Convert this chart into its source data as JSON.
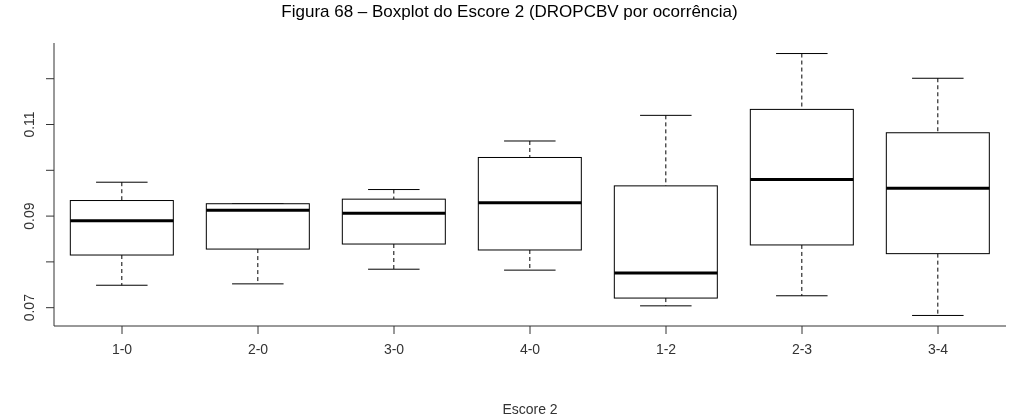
{
  "chart_data": {
    "type": "box",
    "title": "Figura 68 – Boxplot do Escore 2 (DROPCBV por ocorrência)",
    "xlabel": "Escore 2",
    "categories": [
      "1-0",
      "2-0",
      "3-0",
      "4-0",
      "1-2",
      "2-3",
      "3-4"
    ],
    "boxes": [
      {
        "low": 0.0749,
        "q1": 0.0815,
        "median": 0.089,
        "q3": 0.0934,
        "high": 0.0974
      },
      {
        "low": 0.0752,
        "q1": 0.0828,
        "median": 0.0913,
        "q3": 0.0927,
        "high": 0.0927
      },
      {
        "low": 0.0784,
        "q1": 0.0839,
        "median": 0.0906,
        "q3": 0.0937,
        "high": 0.0958
      },
      {
        "low": 0.0782,
        "q1": 0.0826,
        "median": 0.0929,
        "q3": 0.1028,
        "high": 0.1064
      },
      {
        "low": 0.0704,
        "q1": 0.0721,
        "median": 0.0776,
        "q3": 0.0966,
        "high": 0.112
      },
      {
        "low": 0.0726,
        "q1": 0.0837,
        "median": 0.098,
        "q3": 0.1133,
        "high": 0.1255
      },
      {
        "low": 0.0683,
        "q1": 0.0818,
        "median": 0.0961,
        "q3": 0.1082,
        "high": 0.1201
      }
    ],
    "ylim": [
      0.066,
      0.1278
    ],
    "yticks": [
      0.07,
      {
        "value": 0.08,
        "label": null
      },
      0.09,
      {
        "value": 0.1,
        "label": null
      },
      0.11,
      {
        "value": 0.12,
        "label": null
      }
    ]
  }
}
